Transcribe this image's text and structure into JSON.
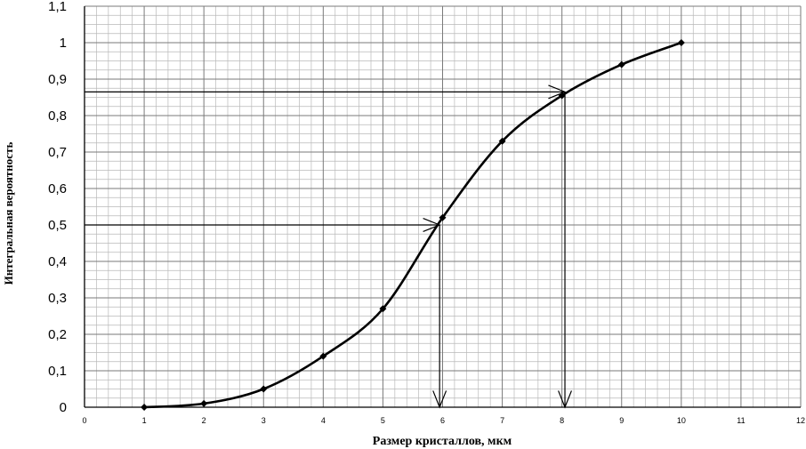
{
  "chart_data": {
    "type": "line",
    "xlabel": "Размер кристаллов, мкм",
    "ylabel": "Интегральная вероятность",
    "xlim": [
      0,
      12
    ],
    "ylim": [
      0,
      1.1
    ],
    "x_ticks": [
      "0",
      "1",
      "2",
      "3",
      "4",
      "5",
      "6",
      "7",
      "8",
      "9",
      "10",
      "11",
      "12"
    ],
    "y_ticks": [
      "0",
      "0,1",
      "0,2",
      "0,3",
      "0,4",
      "0,5",
      "0,6",
      "0,7",
      "0,8",
      "0,9",
      "1",
      "1,1"
    ],
    "grid": true,
    "x": [
      1,
      2,
      3,
      4,
      5,
      6,
      7,
      8,
      9,
      10
    ],
    "series": [
      {
        "values": [
          0.0,
          0.01,
          0.05,
          0.14,
          0.27,
          0.52,
          0.73,
          0.855,
          0.94,
          1.0
        ]
      }
    ],
    "annotations": [
      {
        "type": "arrow",
        "from": [
          0,
          0.5
        ],
        "to": [
          5.95,
          0.5
        ]
      },
      {
        "type": "arrow",
        "from": [
          5.95,
          0.5
        ],
        "to": [
          5.95,
          0
        ]
      },
      {
        "type": "arrow",
        "from": [
          0,
          0.865
        ],
        "to": [
          8.05,
          0.865
        ]
      },
      {
        "type": "arrow",
        "from": [
          8.05,
          0.865
        ],
        "to": [
          8.05,
          0
        ]
      }
    ]
  }
}
